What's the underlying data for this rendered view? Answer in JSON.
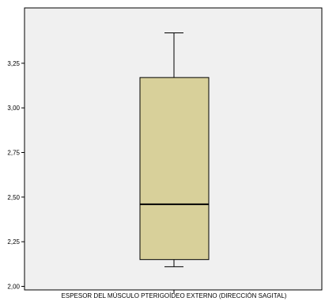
{
  "chart_data": {
    "type": "boxplot",
    "title": "",
    "xlabel": "ESPESOR DEL MÚSCULO PTERIGOÍDEO EXTERNO (DIRECCIÓN SAGITAL)",
    "ylabel": "",
    "ylim": [
      1.98,
      3.56
    ],
    "y_ticks": [
      2.0,
      2.25,
      2.5,
      2.75,
      3.0,
      3.25
    ],
    "y_tick_labels": [
      "2,00",
      "2,25",
      "2,50",
      "2,75",
      "3,00",
      "3,25"
    ],
    "box": {
      "min": 2.11,
      "q1": 2.15,
      "median": 2.46,
      "q3": 3.17,
      "max": 3.42
    },
    "grid": false,
    "colors": {
      "plot_background": "#f0f0f0",
      "box_fill": "#d8d09a",
      "line": "#000000"
    }
  }
}
